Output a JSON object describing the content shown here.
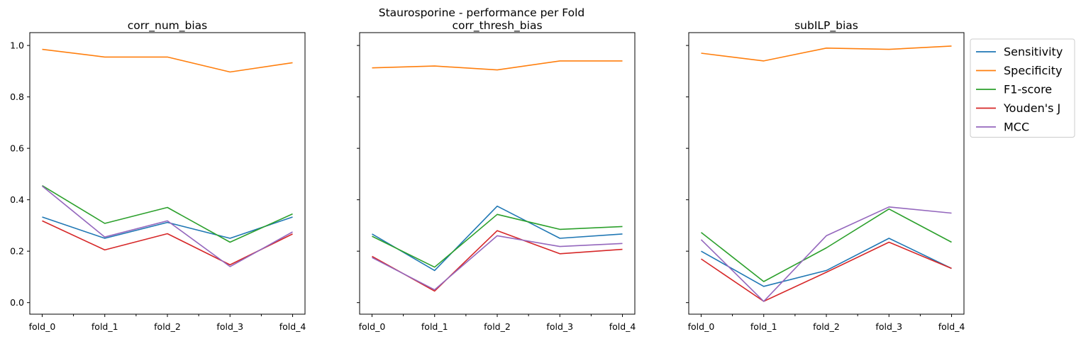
{
  "figure_title": "Staurosporine - performance per Fold",
  "chart_data": [
    {
      "type": "line",
      "title": "corr_num_bias",
      "categories": [
        "fold_0",
        "fold_1",
        "fold_2",
        "fold_3",
        "fold_4"
      ],
      "ylim": [
        -0.045,
        1.05
      ],
      "yticks": [
        "0.0",
        "0.2",
        "0.4",
        "0.6",
        "0.8",
        "1.0"
      ],
      "series": [
        {
          "name": "Sensitivity",
          "values": [
            0.333,
            0.25,
            0.312,
            0.25,
            0.333
          ]
        },
        {
          "name": "Specificity",
          "values": [
            0.985,
            0.955,
            0.955,
            0.897,
            0.933
          ]
        },
        {
          "name": "F1-score",
          "values": [
            0.455,
            0.308,
            0.37,
            0.235,
            0.345
          ]
        },
        {
          "name": "Youden's J",
          "values": [
            0.318,
            0.205,
            0.268,
            0.147,
            0.267
          ]
        },
        {
          "name": "MCC",
          "values": [
            0.453,
            0.255,
            0.318,
            0.14,
            0.275
          ]
        }
      ]
    },
    {
      "type": "line",
      "title": "corr_thresh_bias",
      "categories": [
        "fold_0",
        "fold_1",
        "fold_2",
        "fold_3",
        "fold_4"
      ],
      "ylim": [
        -0.045,
        1.05
      ],
      "series": [
        {
          "name": "Sensitivity",
          "values": [
            0.267,
            0.125,
            0.375,
            0.25,
            0.267
          ]
        },
        {
          "name": "Specificity",
          "values": [
            0.913,
            0.92,
            0.905,
            0.94,
            0.94
          ]
        },
        {
          "name": "F1-score",
          "values": [
            0.258,
            0.138,
            0.343,
            0.285,
            0.296
          ]
        },
        {
          "name": "Youden's J",
          "values": [
            0.18,
            0.045,
            0.28,
            0.19,
            0.207
          ]
        },
        {
          "name": "MCC",
          "values": [
            0.175,
            0.05,
            0.26,
            0.218,
            0.23
          ]
        }
      ]
    },
    {
      "type": "line",
      "title": "subILP_bias",
      "categories": [
        "fold_0",
        "fold_1",
        "fold_2",
        "fold_3",
        "fold_4"
      ],
      "ylim": [
        -0.045,
        1.05
      ],
      "series": [
        {
          "name": "Sensitivity",
          "values": [
            0.2,
            0.063,
            0.125,
            0.25,
            0.133
          ]
        },
        {
          "name": "Specificity",
          "values": [
            0.97,
            0.94,
            0.99,
            0.985,
            0.998
          ]
        },
        {
          "name": "F1-score",
          "values": [
            0.273,
            0.082,
            0.213,
            0.364,
            0.235
          ]
        },
        {
          "name": "Youden's J",
          "values": [
            0.17,
            0.005,
            0.118,
            0.235,
            0.133
          ]
        },
        {
          "name": "MCC",
          "values": [
            0.245,
            0.005,
            0.26,
            0.372,
            0.348
          ]
        }
      ]
    }
  ],
  "legend": {
    "placement": "outside-right",
    "entries": [
      "Sensitivity",
      "Specificity",
      "F1-score",
      "Youden's J",
      "MCC"
    ]
  },
  "colors": {
    "Sensitivity": "#1f77b4",
    "Specificity": "#ff7f0e",
    "F1-score": "#2ca02c",
    "Youden's J": "#d62728",
    "MCC": "#9467bd"
  }
}
